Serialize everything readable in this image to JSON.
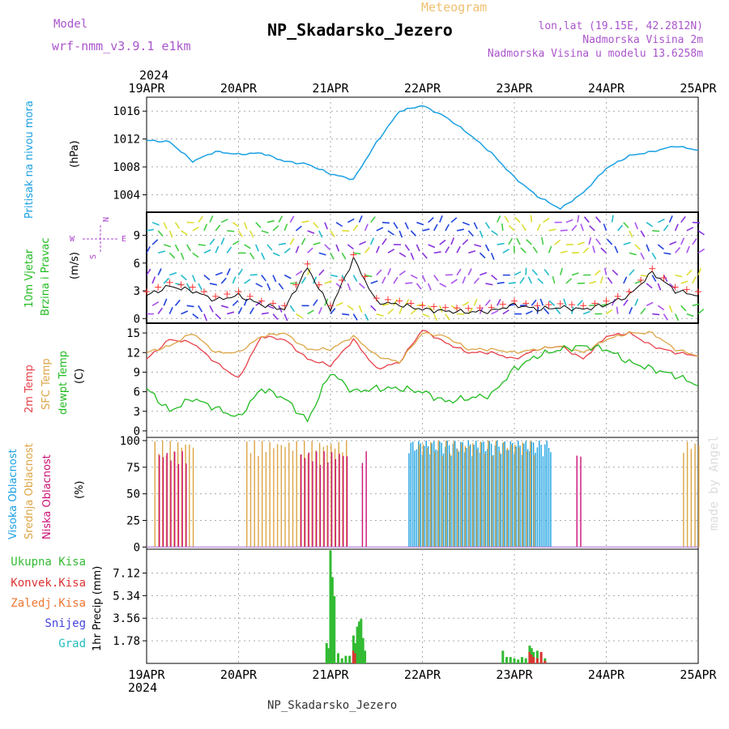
{
  "header": {
    "model_label": "Model",
    "model_name": "wrf-nmm_v3.9.1 e1km",
    "title": "NP_Skadarsko_Jezero",
    "subtitle": "Meteogram",
    "lonlat": "lon,lat (19.15E, 42.2812N)",
    "elevation": "Nadmorska Visina 2m",
    "model_elevation": "Nadmorska Visina u modelu 13.6258m",
    "watermark": "made by Angel",
    "footer_station": "NP_Skadarsko_Jezero",
    "year": "2024"
  },
  "time_axis": {
    "ticks": [
      "19APR",
      "20APR",
      "21APR",
      "22APR",
      "23APR",
      "24APR",
      "25APR"
    ]
  },
  "colors": {
    "pressure": "#1ba1e2",
    "t2m": "#e8414b",
    "sfc": "#dca545",
    "dewpt": "#22bb22",
    "high_cloud": "#1ba1e2",
    "mid_cloud": "#dca545",
    "low_cloud": "#cc1177",
    "precip_total": "#33bb33",
    "precip_conv": "#dd3333",
    "precip_frozen": "#ee7733",
    "precip_snow": "#4444dd",
    "precip_hail": "#22bbbb",
    "wind_speed": "#000000",
    "gust": "#ff3333",
    "compass": "#aa44cc"
  },
  "panels": {
    "pressure": {
      "ylabel_title": "Pritisak na nivou mora",
      "unit": "(hPa)",
      "ticks": [
        "1004",
        "1008",
        "1012",
        "1016"
      ]
    },
    "wind": {
      "ylabel_1": "10m Vjetar",
      "ylabel_2": "Brzina i Pravac",
      "unit": "(m/s)",
      "ticks": [
        "0",
        "3",
        "6",
        "9"
      ],
      "compass": {
        "n": "N",
        "w": "W",
        "e": "E",
        "s": "S"
      }
    },
    "temp": {
      "label_t2m": "2m Temp",
      "label_sfc": "SFC Temp",
      "label_dew": "dewpt Temp",
      "unit": "(C)",
      "ticks": [
        "0",
        "3",
        "6",
        "9",
        "12",
        "15"
      ]
    },
    "cloud": {
      "label_high": "Visoka Oblacnost",
      "label_mid": "Srednja Oblacnost",
      "label_low": "Niska Oblacnost",
      "unit": "(%)",
      "ticks": [
        "0",
        "25",
        "50",
        "75",
        "100"
      ]
    },
    "precip": {
      "legend": [
        "Ukupna Kisa",
        "Konvek.Kisa",
        "Zaledj.Kisa",
        "Snijeg",
        "Grad"
      ],
      "unit": "1hr Precip (mm)",
      "ticks": [
        "1.78",
        "3.56",
        "5.34",
        "7.12"
      ]
    }
  },
  "chart_data": [
    {
      "type": "line",
      "name": "Pritisak na nivou mora",
      "x": [
        0,
        6,
        12,
        18,
        24,
        30,
        36,
        42,
        48,
        54,
        60,
        66,
        72,
        78,
        84,
        90,
        96,
        102,
        108,
        114,
        120,
        126,
        132,
        138,
        144
      ],
      "series": [
        {
          "name": "Pritisak na nivou mora",
          "values": [
            1011.8,
            1011.6,
            1008.8,
            1010.2,
            1009.8,
            1010.0,
            1008.8,
            1008.4,
            1007.0,
            1006.2,
            1011.5,
            1016.0,
            1016.8,
            1015.2,
            1012.8,
            1010.0,
            1006.5,
            1003.8,
            1002.0,
            1004.3,
            1007.8,
            1009.6,
            1010.2,
            1011.0,
            1010.4
          ]
        }
      ],
      "xlabel": "",
      "ylabel": "(hPa)",
      "ylim": [
        1001.5,
        1018
      ]
    },
    {
      "type": "line",
      "name": "10m Vjetar Brzina i Pravac",
      "x": [
        0,
        6,
        12,
        18,
        24,
        30,
        36,
        42,
        48,
        54,
        60,
        66,
        72,
        78,
        84,
        90,
        96,
        102,
        108,
        114,
        120,
        126,
        132,
        138,
        144
      ],
      "series": [
        {
          "name": "10m Vjetar Brzina i Pravac",
          "values": [
            2.5,
            3.5,
            3.0,
            2.0,
            2.5,
            1.5,
            1.0,
            5.5,
            1.0,
            6.5,
            1.8,
            1.5,
            1.0,
            0.8,
            0.7,
            0.8,
            1.5,
            1.0,
            1.2,
            1.0,
            1.5,
            2.5,
            5.0,
            3.0,
            2.5
          ]
        }
      ],
      "ylabel": "(m/s)",
      "ylim": [
        -0.5,
        11.5
      ]
    },
    {
      "type": "line",
      "name": "Temperatura",
      "x": [
        0,
        6,
        12,
        18,
        24,
        30,
        36,
        42,
        48,
        54,
        60,
        66,
        72,
        78,
        84,
        90,
        96,
        102,
        108,
        114,
        120,
        126,
        132,
        138,
        144
      ],
      "series": [
        {
          "name": "2m Temp",
          "values": [
            11.0,
            14.0,
            13.5,
            10.5,
            8.0,
            14.5,
            14.0,
            11.0,
            10.0,
            14.0,
            9.5,
            10.5,
            15.5,
            13.5,
            12.0,
            12.0,
            11.0,
            12.5,
            13.0,
            11.0,
            14.5,
            15.0,
            13.0,
            12.0,
            11.5
          ]
        },
        {
          "name": "SFC Temp",
          "values": [
            12.0,
            13.0,
            15.0,
            12.0,
            12.0,
            14.5,
            15.0,
            12.5,
            12.5,
            14.5,
            11.5,
            10.5,
            15.0,
            14.5,
            12.5,
            12.5,
            12.0,
            12.5,
            13.0,
            12.0,
            14.0,
            15.0,
            15.0,
            12.5,
            11.5
          ]
        },
        {
          "name": "dewpt Temp",
          "values": [
            6.5,
            3.0,
            5.0,
            3.5,
            2.0,
            6.5,
            5.0,
            1.5,
            9.0,
            6.0,
            6.5,
            6.5,
            6.0,
            4.5,
            5.0,
            5.5,
            9.5,
            11.5,
            12.5,
            13.0,
            12.5,
            10.5,
            9.5,
            8.5,
            7.0
          ]
        }
      ],
      "ylabel": "(C)",
      "ylim": [
        -1,
        16.5
      ]
    },
    {
      "type": "bar",
      "name": "Oblacnost",
      "series": [
        {
          "name": "Visoka Oblacnost",
          "intervals": [
            [
              68.5,
              105.5
            ]
          ],
          "value": 100
        },
        {
          "name": "Srednja Oblacnost",
          "intervals": [
            [
              2,
              12
            ],
            [
              26,
              52
            ],
            [
              71,
              101
            ],
            [
              140,
              144
            ]
          ],
          "value": 100
        },
        {
          "name": "Niska Oblacnost",
          "intervals": [
            [
              3,
              10
            ],
            [
              40,
              52
            ],
            [
              56,
              57
            ],
            [
              112,
              113
            ]
          ],
          "value": 90
        }
      ],
      "ylabel": "(%)",
      "ylim": [
        0,
        100
      ]
    },
    {
      "type": "bar",
      "name": "1hr Precip",
      "x": [
        47,
        47.5,
        48,
        48.5,
        49,
        50,
        51,
        52,
        53,
        54,
        54.5,
        55,
        55.5,
        56,
        56.5,
        57,
        93,
        94,
        95,
        96,
        97,
        98,
        99,
        100,
        100.5,
        101,
        102,
        103,
        104
      ],
      "series": [
        {
          "name": "Ukupna Kisa",
          "values": [
            1.6,
            1.2,
            8.9,
            6.8,
            5.3,
            0.8,
            0.4,
            0.6,
            0.6,
            2.2,
            1.6,
            2.9,
            3.3,
            3.5,
            2.0,
            1.0,
            1.0,
            0.5,
            0.5,
            0.4,
            0.3,
            0.5,
            0.4,
            1.4,
            1.2,
            0.9,
            1.0,
            0.7,
            0.4
          ]
        },
        {
          "name": "Konvek.Kisa",
          "values": [
            0,
            0,
            0,
            0,
            0,
            0,
            0,
            0,
            0,
            1.0,
            0.8,
            0,
            0,
            0,
            0,
            0,
            0,
            0,
            0,
            0,
            0,
            0,
            0,
            0.9,
            0.7,
            0.5,
            0.4,
            0.9,
            0.2
          ]
        }
      ],
      "ylabel": "1hr Precip (mm)",
      "ylim": [
        0,
        9
      ]
    }
  ]
}
